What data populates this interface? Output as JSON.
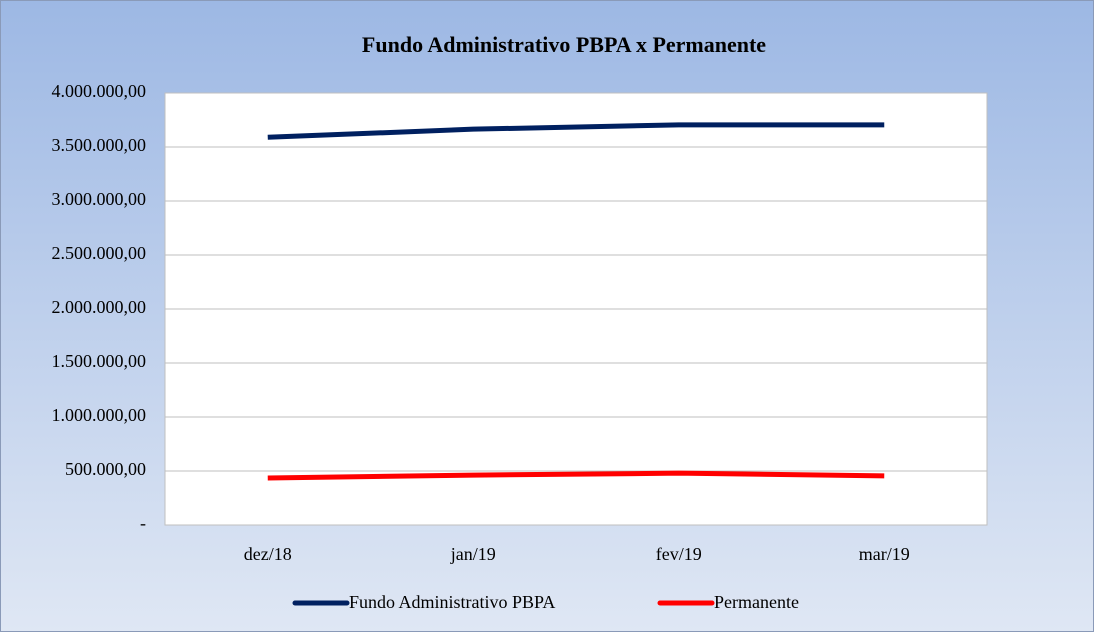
{
  "chart_data": {
    "type": "line",
    "title": "Fundo Administrativo PBPA x  Permanente",
    "categories": [
      "dez/18",
      "jan/19",
      "fev/19",
      "mar/19"
    ],
    "series": [
      {
        "name": "Fundo Administrativo PBPA",
        "color": "#002060",
        "values": [
          3590000,
          3665000,
          3705000,
          3705000
        ]
      },
      {
        "name": "Permanente",
        "color": "#ff0000",
        "values": [
          435000,
          462000,
          480000,
          455000
        ]
      }
    ],
    "ylim": [
      0,
      4000000
    ],
    "yticks": [
      {
        "value": 0,
        "label": "-"
      },
      {
        "value": 500000,
        "label": "500.000,00"
      },
      {
        "value": 1000000,
        "label": "1.000.000,00"
      },
      {
        "value": 1500000,
        "label": "1.500.000,00"
      },
      {
        "value": 2000000,
        "label": "2.000.000,00"
      },
      {
        "value": 2500000,
        "label": "2.500.000,00"
      },
      {
        "value": 3000000,
        "label": "3.000.000,00"
      },
      {
        "value": 3500000,
        "label": "3.500.000,00"
      },
      {
        "value": 4000000,
        "label": "4.000.000,00"
      }
    ],
    "grid": true,
    "legend": "bottom"
  }
}
